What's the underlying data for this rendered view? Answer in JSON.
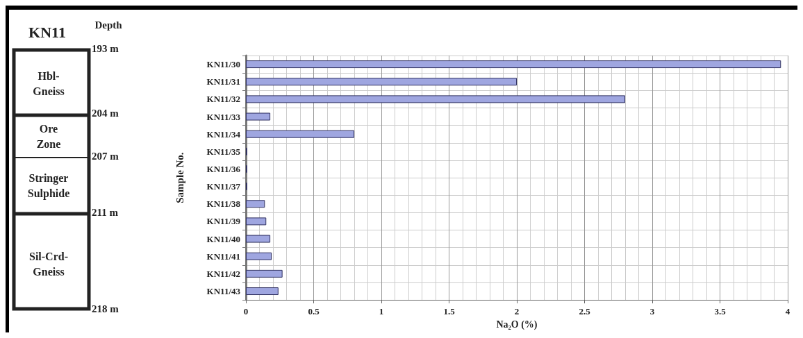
{
  "chart_data": {
    "type": "bar",
    "orientation": "horizontal",
    "ylabel": "Sample No.",
    "xlabel": "Na₂O (%)",
    "categories": [
      "KN11/30",
      "KN11/31",
      "KN11/32",
      "KN11/33",
      "KN11/34",
      "KN11/35",
      "KN11/36",
      "KN11/37",
      "KN11/38",
      "KN11/39",
      "KN11/40",
      "KN11/41",
      "KN11/42",
      "KN11/43"
    ],
    "values": [
      3.95,
      2.0,
      2.8,
      0.18,
      0.8,
      0.01,
      0.01,
      0.01,
      0.14,
      0.15,
      0.18,
      0.19,
      0.27,
      0.24
    ],
    "color": "#9fa6e0",
    "xlim": [
      0,
      4
    ],
    "xticks": [
      0,
      0.5,
      1,
      1.5,
      2,
      2.5,
      3,
      3.5,
      4
    ],
    "grid": true,
    "annotations": [
      "KN11",
      "Depth",
      "193 m",
      "204 m",
      "207 m",
      "211 m",
      "218 m",
      "Hbl-\nGneiss",
      "Ore\nZone",
      "Stringer\nSulphide",
      "Sil-Crd-\nGneiss"
    ]
  }
}
